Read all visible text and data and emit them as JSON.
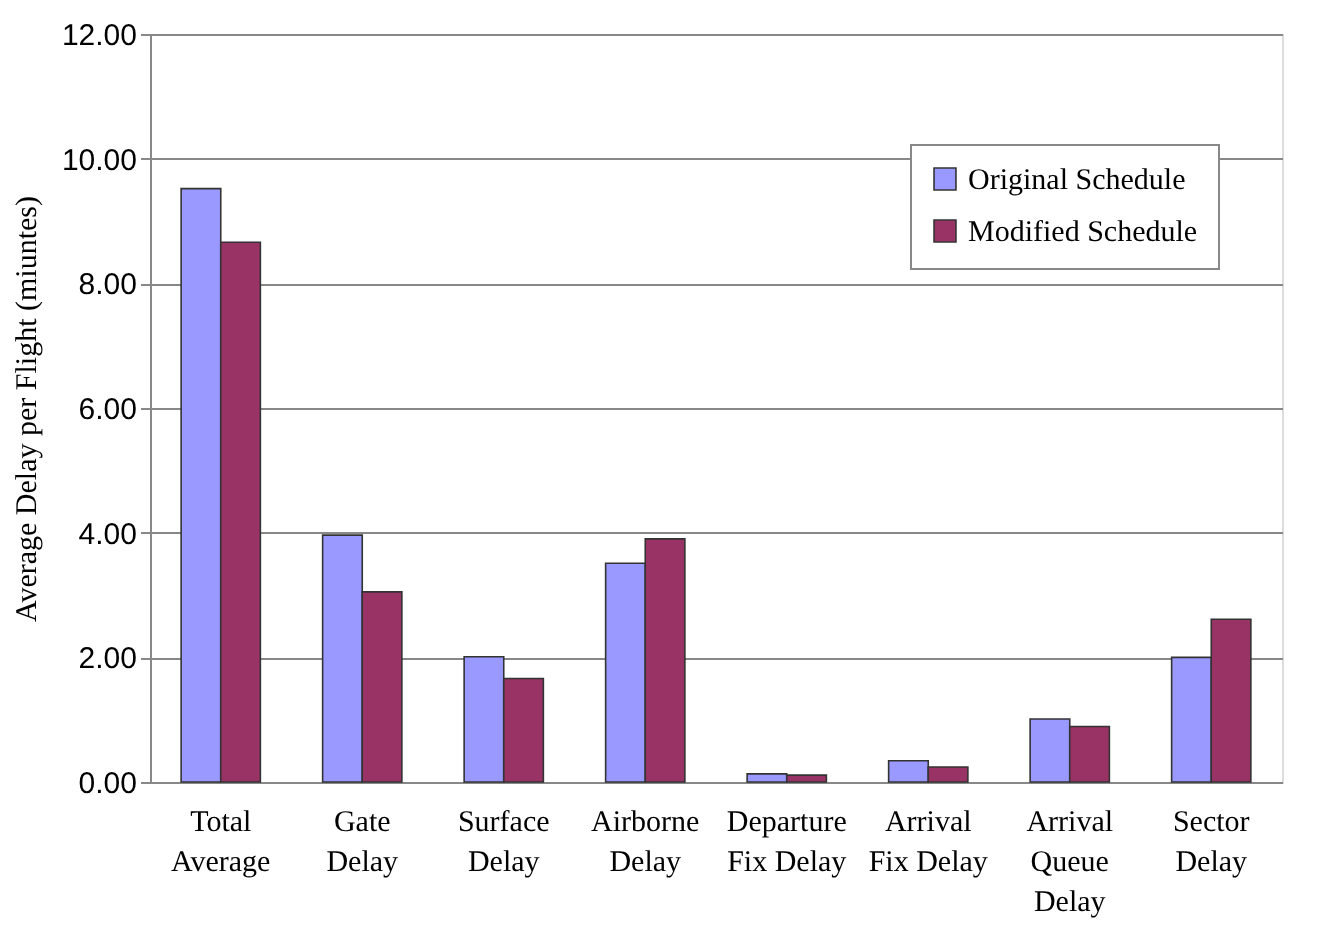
{
  "chart_data": {
    "type": "bar",
    "ylabel": "Average Delay per Flight (miuntes)",
    "categories": [
      "Total\nAverage",
      "Gate\nDelay",
      "Surface\nDelay",
      "Airborne\nDelay",
      "Departure\nFix Delay",
      "Arrival\nFix Delay",
      "Arrival\nQueue\nDelay",
      "Sector\nDelay"
    ],
    "series": [
      {
        "name": "Original Schedule",
        "color": "#9999ff",
        "values": [
          9.52,
          3.96,
          2.01,
          3.51,
          0.13,
          0.34,
          1.01,
          2.0
        ]
      },
      {
        "name": "Modified Schedule",
        "color": "#993366",
        "values": [
          8.66,
          3.05,
          1.66,
          3.9,
          0.11,
          0.24,
          0.89,
          2.61
        ]
      }
    ],
    "ylim": [
      0,
      12
    ],
    "yticks": [
      {
        "value": 0,
        "label": "0.00"
      },
      {
        "value": 2,
        "label": "2.00"
      },
      {
        "value": 4,
        "label": "4.00"
      },
      {
        "value": 6,
        "label": "6.00"
      },
      {
        "value": 8,
        "label": "8.00"
      },
      {
        "value": 10,
        "label": "10.00"
      },
      {
        "value": 12,
        "label": "12.00"
      }
    ],
    "grid": "y",
    "legend": "top right"
  }
}
